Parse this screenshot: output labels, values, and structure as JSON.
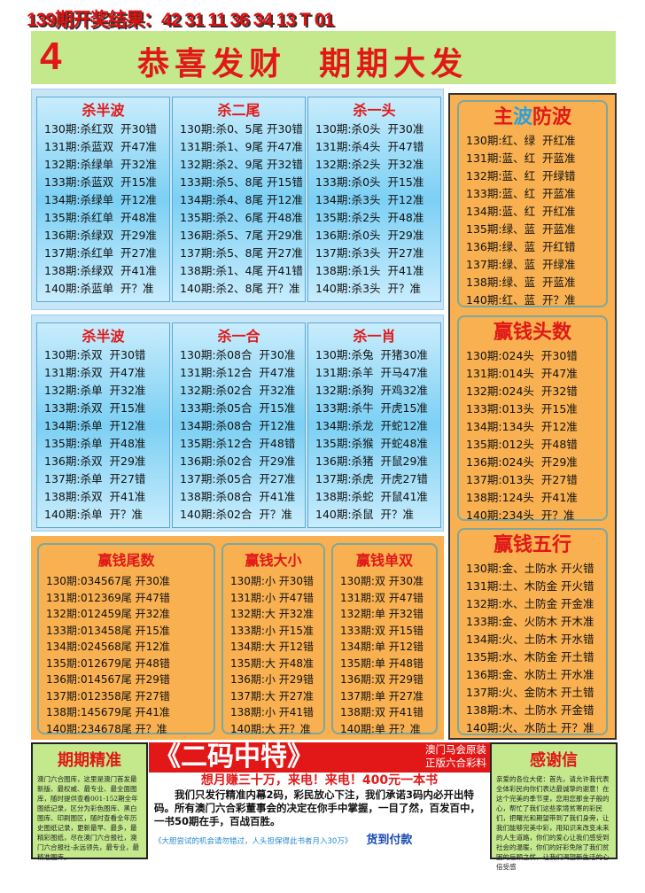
{
  "header": {
    "result": "139期开奖结果：42 31 11 36 34 13 T 01",
    "banner_num": "4",
    "slogan": "恭喜发财  期期大发"
  },
  "blue1": [
    {
      "title": "杀半波",
      "rows": [
        "130期:杀红双  开30错",
        "131期:杀蓝双  开47准",
        "132期:杀绿单  开32准",
        "133期:杀蓝双  开15准",
        "134期:杀绿单  开12准",
        "135期:杀红单  开48准",
        "136期:杀绿双  开29准",
        "137期:杀红单  开27准",
        "138期:杀绿双  开41准",
        "140期:杀蓝单  开？准"
      ]
    },
    {
      "title": "杀二尾",
      "rows": [
        "130期:杀0、5尾 开30错",
        "131期:杀1、9尾 开47准",
        "132期:杀2、9尾 开32错",
        "133期:杀5、8尾 开15错",
        "134期:杀4、8尾 开12准",
        "135期:杀2、6尾 开48准",
        "136期:杀5、7尾 开29准",
        "137期:杀5、8尾 开27准",
        "138期:杀1、4尾 开41错",
        "140期:杀2、8尾 开？准"
      ]
    },
    {
      "title": "杀一头",
      "rows": [
        "130期:杀0头  开30准",
        "131期:杀4头  开47错",
        "132期:杀2头  开32准",
        "133期:杀0头  开15准",
        "134期:杀3头  开12准",
        "135期:杀2头  开48准",
        "136期:杀0头  开29准",
        "137期:杀3头  开27准",
        "138期:杀1头  开41准",
        "140期:杀3头  开？准"
      ]
    }
  ],
  "blue2": [
    {
      "title": "杀半波",
      "rows": [
        "130期:杀双  开30错",
        "131期:杀双  开47准",
        "132期:杀单  开32准",
        "133期:杀双  开15准",
        "134期:杀单  开12准",
        "135期:杀单  开48准",
        "136期:杀双  开29准",
        "137期:杀单  开27错",
        "138期:杀双  开41准",
        "140期:杀单  开？准"
      ]
    },
    {
      "title": "杀一合",
      "rows": [
        "130期:杀08合  开30准",
        "131期:杀12合  开47准",
        "132期:杀02合  开32准",
        "133期:杀05合  开15准",
        "134期:杀08合  开12准",
        "135期:杀12合  开48错",
        "136期:杀02合  开29准",
        "137期:杀05合  开27准",
        "138期:杀08合  开41准",
        "140期:杀02合  开？准"
      ]
    },
    {
      "title": "杀一肖",
      "rows": [
        "130期:杀兔  开猪30准",
        "131期:杀羊  开马47准",
        "132期:杀狗  开鸡32准",
        "133期:杀牛  开虎15准",
        "134期:杀龙  开蛇12准",
        "135期:杀猴  开蛇48准",
        "136期:杀猪  开鼠29准",
        "137期:杀虎  开虎27错",
        "138期:杀蛇  开鼠41准",
        "140期:杀鼠  开？准"
      ]
    }
  ],
  "right": [
    {
      "title": "主波防波",
      "rows": [
        "130期:红、绿  开红准",
        "131期:蓝、红  开蓝准",
        "132期:蓝、红  开绿错",
        "133期:蓝、红  开蓝准",
        "134期:蓝、红  开红准",
        "135期:绿、蓝  开蓝准",
        "136期:绿、蓝  开红错",
        "137期:绿、蓝  开绿准",
        "138期:绿、蓝  开蓝准",
        "140期:红、蓝  开？准"
      ]
    },
    {
      "title": "赢钱头数",
      "rows": [
        "130期:024头  开30错",
        "131期:014头  开47准",
        "132期:024头  开32错",
        "133期:013头  开15准",
        "134期:134头  开12准",
        "135期:012头  开48错",
        "136期:024头  开29准",
        "137期:013头  开27错",
        "138期:124头  开41准",
        "140期:234头  开？准"
      ]
    },
    {
      "title": "赢钱五行",
      "rows": [
        "130期:金、土防水 开火错",
        "131期:土、木防金 开火错",
        "132期:水、土防金 开金准",
        "133期:金、火防木 开木准",
        "134期:火、土防木 开水错",
        "135期:水、木防金 开土错",
        "136期:金、水防土 开水准",
        "137期:火、金防木 开土错",
        "138期:木、土防水 开金错",
        "140期:火、水防土 开？准"
      ]
    }
  ],
  "orange": [
    {
      "title": "赢钱尾数",
      "rows": [
        "130期:034567尾 开30准",
        "131期:012369尾 开47错",
        "132期:012459尾 开32准",
        "133期:013458尾 开15准",
        "134期:024568尾 开12准",
        "135期:012679尾 开48错",
        "136期:014567尾 开29错",
        "137期:012358尾 开27错",
        "138期:145679尾 开41准",
        "140期:234678尾 开？准"
      ]
    },
    {
      "title": "赢钱大小",
      "rows": [
        "130期:小 开30错",
        "131期:小 开47错",
        "132期:大 开32准",
        "133期:小 开15准",
        "134期:大 开12错",
        "135期:大 开48准",
        "136期:小 开29错",
        "137期:大 开27准",
        "138期:小 开41错",
        "140期:大 开？准"
      ]
    },
    {
      "title": "赢钱单双",
      "rows": [
        "130期:双 开30准",
        "131期:双 开47错",
        "132期:单 开32错",
        "133期:双 开15错",
        "134期:单 开12错",
        "135期:单 开48错",
        "136期:双 开29错",
        "137期:单 开27准",
        "138期:双 开41错",
        "140期:单 开？准"
      ]
    }
  ],
  "bottom": {
    "left_title": "期期精准",
    "left_text": "澳门六合图库，这里是澳门首发最新版、最权威、最专业、最全面图库，随时提供查看001-152期全年图纸记录，区分为彩色图库、黑白图库、印刷图区，随时查看全年历史图纸记录，更新最早、最多，最精彩图纸，尽在澳门六合报社，澳门六合报社-永远领先，最专业，最精准图库。",
    "ad_title": "《二码中特》",
    "ad_side1": "澳门马会原装",
    "ad_side2": "正版六合彩料",
    "ad_sub": "想月赚三十万，来电！来电！400元一本书",
    "ad_body": "我们只发行精准内幕2码，彩民放心下注，我们承诺3码内必开出特码。所有澳门六合彩董事会的决定在你手中掌握，一目了然，百发百中，一书50期在手，百战百胜。",
    "ad_foot": "《大胆尝试的机会请勿错过，人头担保得此书者月入30万》",
    "ad_cod": "货到付款",
    "right_title": "感谢信",
    "right_text": "亲爱的各位大佬：首先，请允许我代表全体彩民向你们表达最诚挚的谢意！在这个完美的季节里，您用您那金子般的心，帮忙了我们这些家境贫寒的彩民们，把曙光和期望带到了我们身旁，让我们能够完美中彩，用知识来改变未来的人生道路，你们的爱心让我们感受到社会的温暖，你们的好彩免除了我们贫困的后顾之忧，让我们渴望新生活的心倍受感"
  },
  "colors": {
    "red": "#e21818",
    "green_banner": "#c4e88c",
    "blue_panel": "#7cd0f4",
    "orange": "#f8b050",
    "blue_text": "#2a8ad0"
  }
}
